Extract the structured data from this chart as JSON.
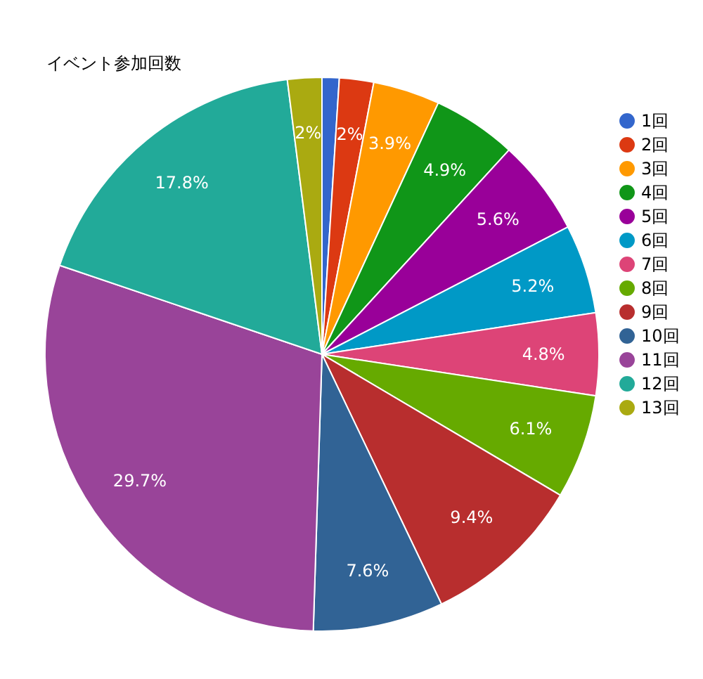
{
  "chart_data": {
    "type": "pie",
    "title": "イベント参加回数",
    "categories": [
      "1回",
      "2回",
      "3回",
      "4回",
      "5回",
      "6回",
      "7回",
      "8回",
      "9回",
      "10回",
      "11回",
      "12回",
      "13回"
    ],
    "values": [
      1.0,
      2,
      3.9,
      4.9,
      5.6,
      5.2,
      4.8,
      6.1,
      9.4,
      7.6,
      29.7,
      17.8,
      2
    ],
    "value_labels": [
      null,
      "2%",
      "3.9%",
      "4.9%",
      "5.6%",
      "5.2%",
      "4.8%",
      "6.1%",
      "9.4%",
      "7.6%",
      "29.7%",
      "17.8%",
      "2%"
    ],
    "colors": [
      "#3366cc",
      "#dc3912",
      "#ff9900",
      "#109618",
      "#990099",
      "#0099c6",
      "#dd4477",
      "#66aa00",
      "#b82e2e",
      "#316395",
      "#994499",
      "#22aa99",
      "#aaaa11"
    ],
    "legend": "right"
  }
}
